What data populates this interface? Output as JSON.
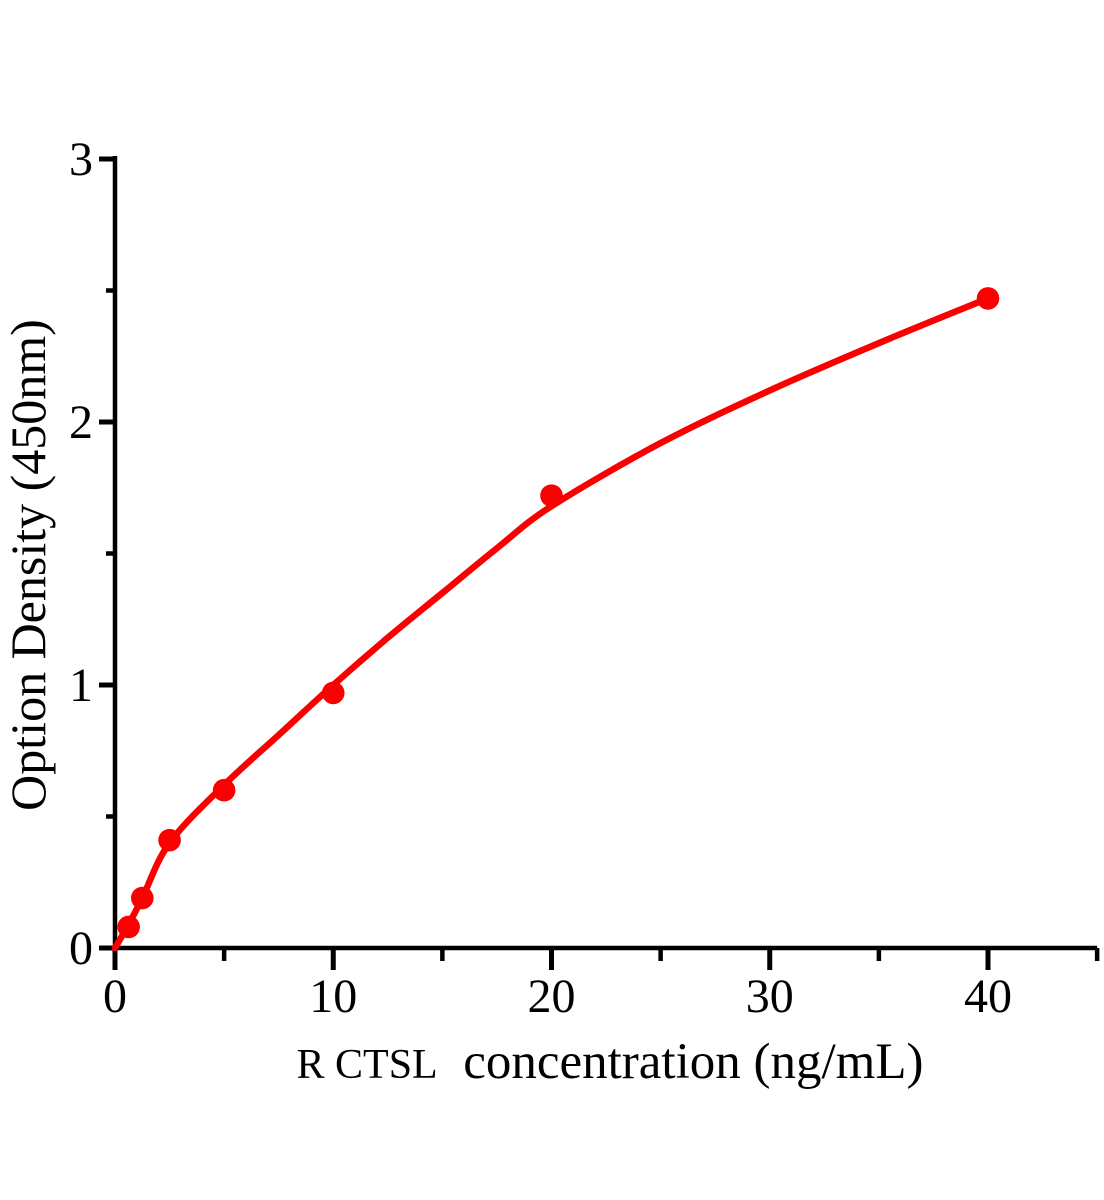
{
  "figure": {
    "background_color": "#ffffff",
    "curve_color": "#fa0000",
    "axis_color": "#000000",
    "text_color": "#000000"
  },
  "chart_data": {
    "type": "scatter",
    "title": "",
    "xlabel_prefix": "R CTSL",
    "xlabel_main": "concentration（ng/mL）",
    "xlabel_full": "R CTSL concentration（ng/mL）",
    "ylabel": "Option Density（450nm）",
    "xlim": [
      0,
      45
    ],
    "ylim": [
      0,
      3
    ],
    "xticks_major": [
      0,
      10,
      20,
      30,
      40
    ],
    "xticks_minor": [
      5,
      15,
      25,
      35,
      45
    ],
    "yticks_major": [
      0,
      1,
      2,
      3
    ],
    "yticks_minor": [
      0.5,
      1.5,
      2.5
    ],
    "grid": false,
    "legend": "none",
    "series": [
      {
        "name": "standard curve points",
        "type": "scatter",
        "marker": "circle",
        "x": [
          0.625,
          1.25,
          2.5,
          5,
          10,
          20,
          40
        ],
        "y": [
          0.08,
          0.19,
          0.41,
          0.6,
          0.97,
          1.72,
          2.47
        ]
      },
      {
        "name": "fitted curve",
        "type": "line",
        "points": [
          [
            0,
            0
          ],
          [
            0.625,
            0.09
          ],
          [
            1.25,
            0.19
          ],
          [
            2.5,
            0.4
          ],
          [
            5,
            0.62
          ],
          [
            7.5,
            0.81
          ],
          [
            10,
            1.0
          ],
          [
            12.5,
            1.18
          ],
          [
            15,
            1.35
          ],
          [
            17.5,
            1.52
          ],
          [
            20,
            1.68
          ],
          [
            25,
            1.92
          ],
          [
            30,
            2.12
          ],
          [
            35,
            2.3
          ],
          [
            40,
            2.47
          ]
        ]
      }
    ]
  }
}
